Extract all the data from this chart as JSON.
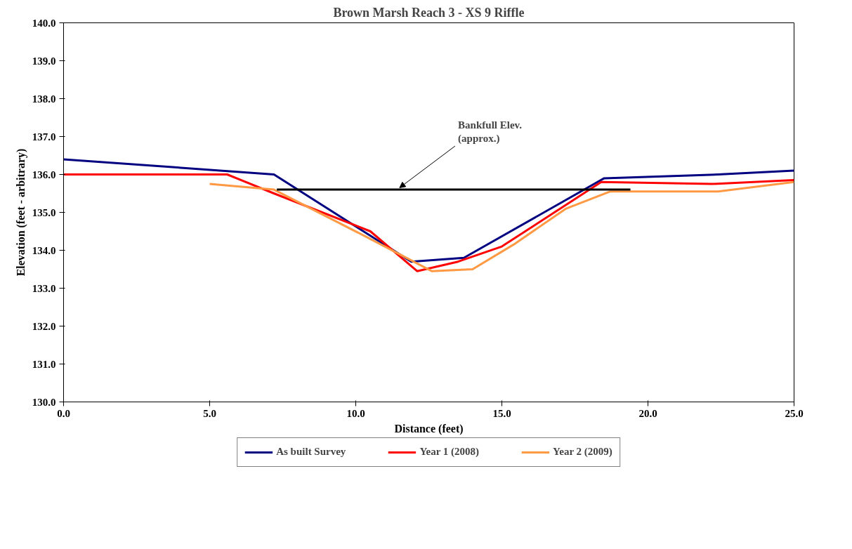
{
  "chart_data": {
    "type": "line",
    "title": "Brown Marsh Reach 3 - XS 9 Riffle",
    "xlabel": "Distance (feet)",
    "ylabel": "Elevation (feet - arbitrary)",
    "xlim": [
      0,
      25
    ],
    "ylim": [
      130,
      140
    ],
    "xticks": [
      {
        "value": 0,
        "label": "0.0"
      },
      {
        "value": 5,
        "label": "5.0"
      },
      {
        "value": 10,
        "label": "10.0"
      },
      {
        "value": 15,
        "label": "15.0"
      },
      {
        "value": 20,
        "label": "20.0"
      },
      {
        "value": 25,
        "label": "25.0"
      }
    ],
    "yticks": [
      {
        "value": 130,
        "label": "130.0"
      },
      {
        "value": 131,
        "label": "131.0"
      },
      {
        "value": 132,
        "label": "132.0"
      },
      {
        "value": 133,
        "label": "133.0"
      },
      {
        "value": 134,
        "label": "134.0"
      },
      {
        "value": 135,
        "label": "135.0"
      },
      {
        "value": 136,
        "label": "136.0"
      },
      {
        "value": 137,
        "label": "137.0"
      },
      {
        "value": 138,
        "label": "138.0"
      },
      {
        "value": 139,
        "label": "139.0"
      },
      {
        "value": 140,
        "label": "140.0"
      }
    ],
    "series": [
      {
        "name": "As built Survey",
        "color": "#000080",
        "x": [
          0,
          7.2,
          11.9,
          13.7,
          18.5,
          22.4,
          25
        ],
        "values": [
          136.4,
          136.0,
          133.7,
          133.8,
          135.9,
          136.0,
          136.1
        ]
      },
      {
        "name": "Year 1 (2008)",
        "color": "#ff0000",
        "x": [
          0,
          5.6,
          7.2,
          10.5,
          12.1,
          13.5,
          15.0,
          18.4,
          22.2,
          25
        ],
        "values": [
          136.0,
          136.0,
          135.5,
          134.5,
          133.45,
          133.7,
          134.1,
          135.8,
          135.75,
          135.85
        ]
      },
      {
        "name": "Year 2 (2009)",
        "color": "#ff9944",
        "x": [
          5.0,
          7.2,
          10.5,
          12.6,
          14.0,
          15.4,
          17.2,
          18.7,
          22.4,
          25
        ],
        "values": [
          135.75,
          135.6,
          134.3,
          133.45,
          133.5,
          134.15,
          135.1,
          135.55,
          135.55,
          135.8
        ]
      },
      {
        "color": "#000000",
        "x": [
          7.3,
          19.4
        ],
        "values": [
          135.6,
          135.6
        ]
      }
    ],
    "annotations": [
      {
        "text": "Bankfull Elev.\n(approx.)",
        "x": 11.5,
        "y": 135.6
      }
    ],
    "legend": "bottom",
    "grid": false,
    "marker": "none",
    "line_style": "solid"
  }
}
